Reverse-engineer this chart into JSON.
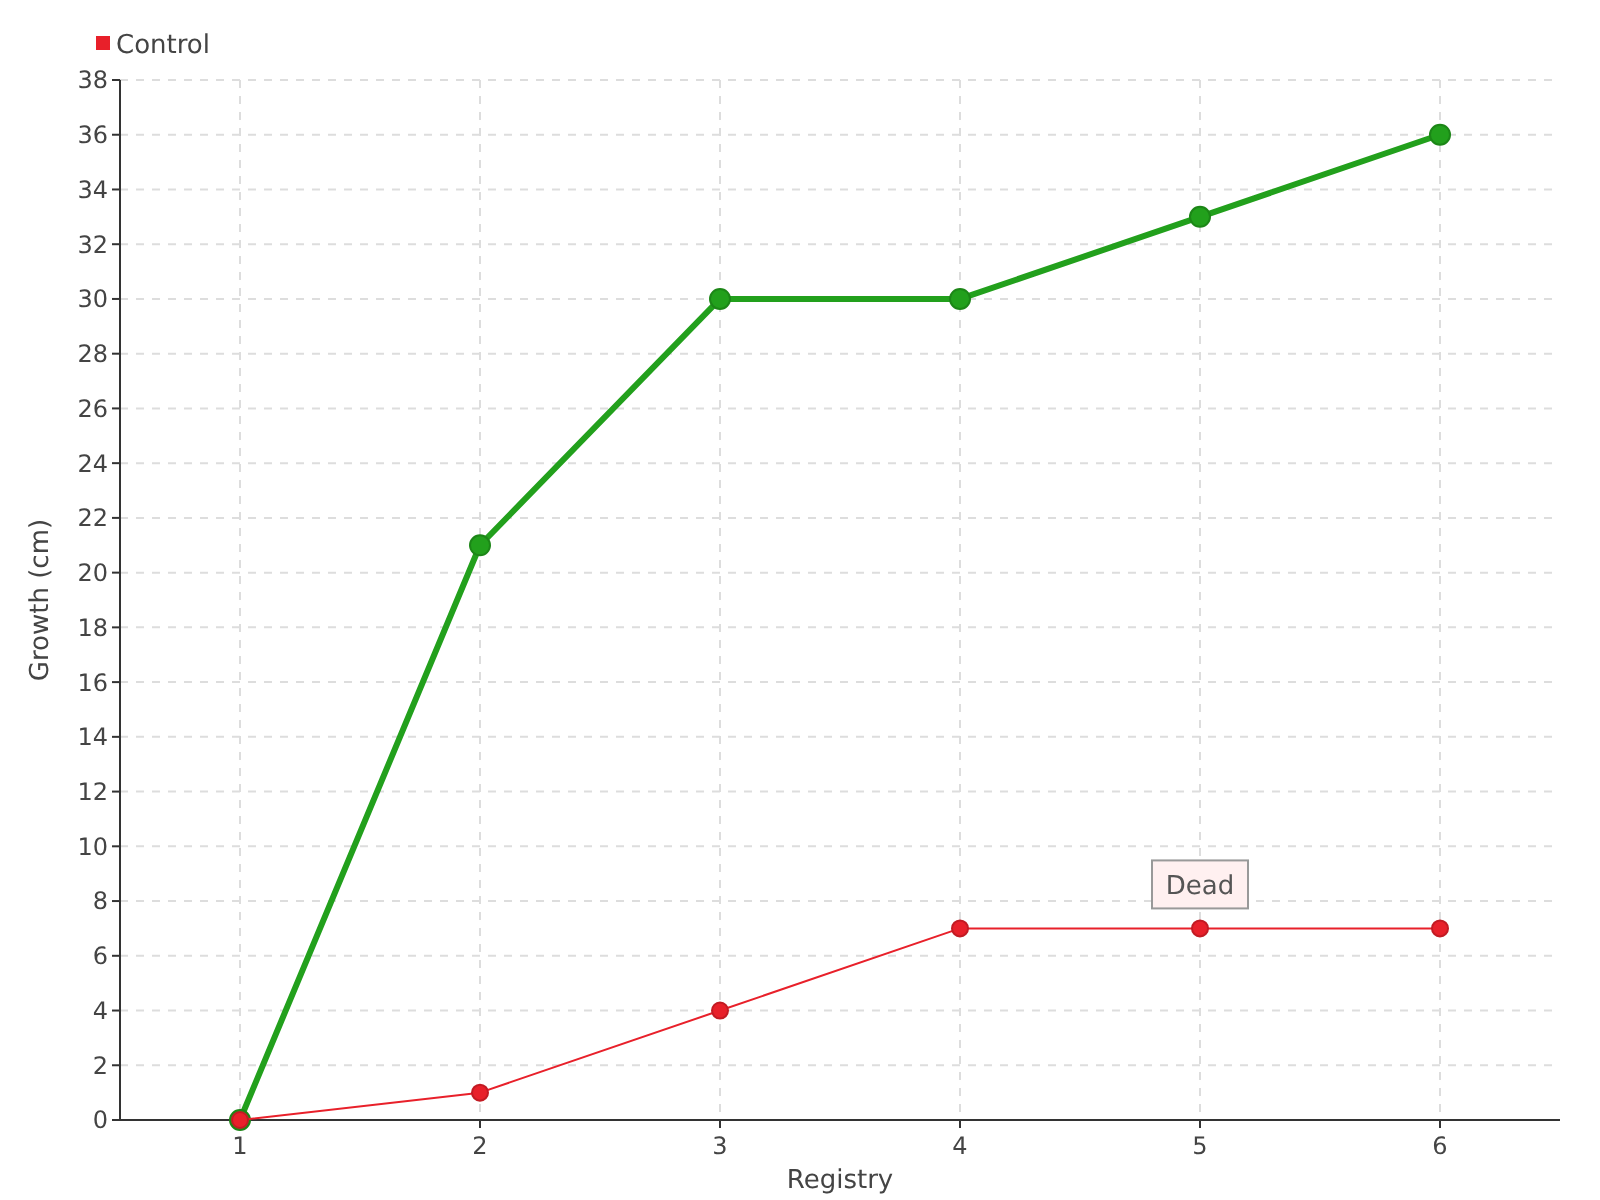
{
  "chart_data": {
    "type": "line",
    "xlabel": "Registry",
    "ylabel": "Growth (cm)",
    "x": [
      1,
      2,
      3,
      4,
      5,
      6
    ],
    "xlim": [
      0.5,
      6.5
    ],
    "xticks": [
      1,
      2,
      3,
      4,
      5,
      6
    ],
    "ylim": [
      0,
      38
    ],
    "yticks": [
      0,
      2,
      4,
      6,
      8,
      10,
      12,
      14,
      16,
      18,
      20,
      22,
      24,
      26,
      28,
      30,
      32,
      34,
      36,
      38
    ],
    "series": [
      {
        "color": "#22a01c",
        "values": [
          0,
          21,
          30,
          30,
          33,
          36
        ]
      },
      {
        "name": "Control",
        "color": "#e8202a",
        "values": [
          0,
          1,
          4,
          7,
          7,
          7
        ]
      }
    ],
    "annotations": [
      {
        "text": "Dead",
        "x": 5,
        "y": 7
      }
    ],
    "grid": true,
    "legend": "top left",
    "marker": "circle"
  }
}
